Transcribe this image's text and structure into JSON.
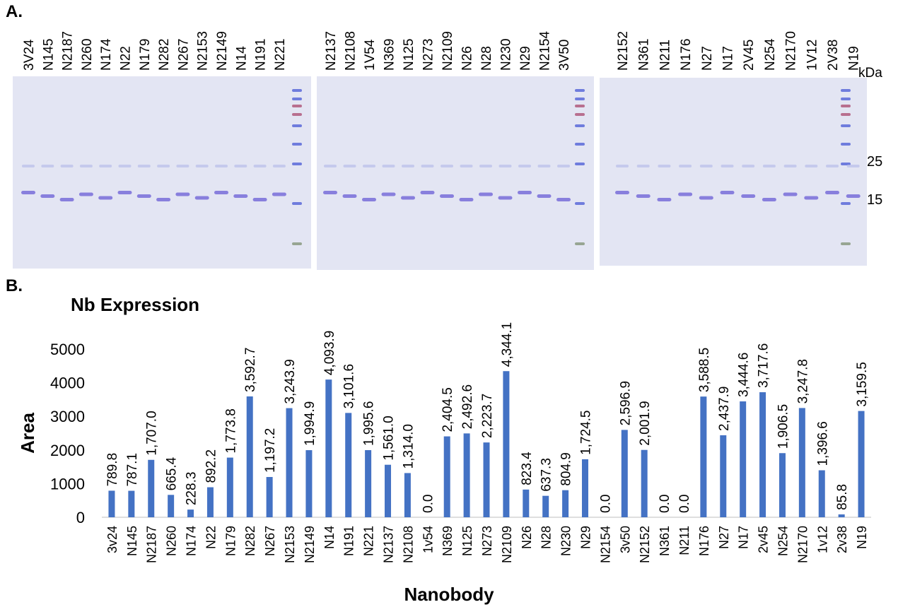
{
  "panel_a": {
    "label": "A.",
    "gels": [
      {
        "lanes": [
          "3V24",
          "N145",
          "N2187",
          "N260",
          "N174",
          "N22",
          "N179",
          "N282",
          "N267",
          "N2153",
          "N2149",
          "N14",
          "N191",
          "N221"
        ]
      },
      {
        "lanes": [
          "N2137",
          "N2108",
          "1V54",
          "N369",
          "N125",
          "N273",
          "N2109",
          "N26",
          "N28",
          "N230",
          "N29",
          "N2154",
          "3V50"
        ]
      },
      {
        "lanes": [
          "N2152",
          "N361",
          "N211",
          "N176",
          "N27",
          "N17",
          "2V45",
          "N254",
          "N2170",
          "1V12",
          "2V38",
          "N19"
        ]
      }
    ],
    "unit": "kDa",
    "markers": [
      25,
      15
    ]
  },
  "panel_b": {
    "label": "B."
  },
  "chart_data": {
    "type": "bar",
    "title": "Nb Expression",
    "x_label": "Nanobody",
    "y_label": "Area",
    "categories": [
      "3v24",
      "N145",
      "N2187",
      "N260",
      "N174",
      "N22",
      "N179",
      "N282",
      "N267",
      "N2153",
      "N2149",
      "N14",
      "N191",
      "N221",
      "N2137",
      "N2108",
      "1v54",
      "N369",
      "N125",
      "N273",
      "N2109",
      "N26",
      "N28",
      "N230",
      "N29",
      "N2154",
      "3v50",
      "N2152",
      "N361",
      "N211",
      "N176",
      "N27",
      "N17",
      "2v45",
      "N254",
      "N2170",
      "1v12",
      "2v38",
      "N19"
    ],
    "values": [
      789.8,
      787.1,
      1707.0,
      665.4,
      228.3,
      892.2,
      1773.8,
      3592.7,
      1197.2,
      3243.9,
      1994.9,
      4093.9,
      3101.6,
      1995.6,
      1561.0,
      1314.0,
      0.0,
      2404.5,
      2492.6,
      2223.7,
      4344.1,
      823.4,
      637.3,
      804.9,
      1724.5,
      0.0,
      2596.9,
      2001.9,
      0.0,
      0.0,
      3588.5,
      2437.9,
      3444.6,
      3717.6,
      1906.5,
      3247.8,
      1396.6,
      85.8,
      3159.5
    ],
    "value_labels": [
      "789.8",
      "787.1",
      "1,707.0",
      "665.4",
      "228.3",
      "892.2",
      "1,773.8",
      "3,592.7",
      "1,197.2",
      "3,243.9",
      "1,994.9",
      "4,093.9",
      "3,101.6",
      "1,995.6",
      "1,561.0",
      "1,314.0",
      "0.0",
      "2,404.5",
      "2,492.6",
      "2,223.7",
      "4,344.1",
      "823.4",
      "637.3",
      "804.9",
      "1,724.5",
      "0.0",
      "2,596.9",
      "2,001.9",
      "0.0",
      "0.0",
      "3,588.5",
      "2,437.9",
      "3,444.6",
      "3,717.6",
      "1,906.5",
      "3,247.8",
      "1,396.6",
      "85.8",
      "3,159.5"
    ],
    "color": "#4472c4",
    "ylim": [
      0,
      5000
    ],
    "yticks": [
      0,
      1000,
      2000,
      3000,
      4000,
      5000
    ],
    "grid": false
  }
}
